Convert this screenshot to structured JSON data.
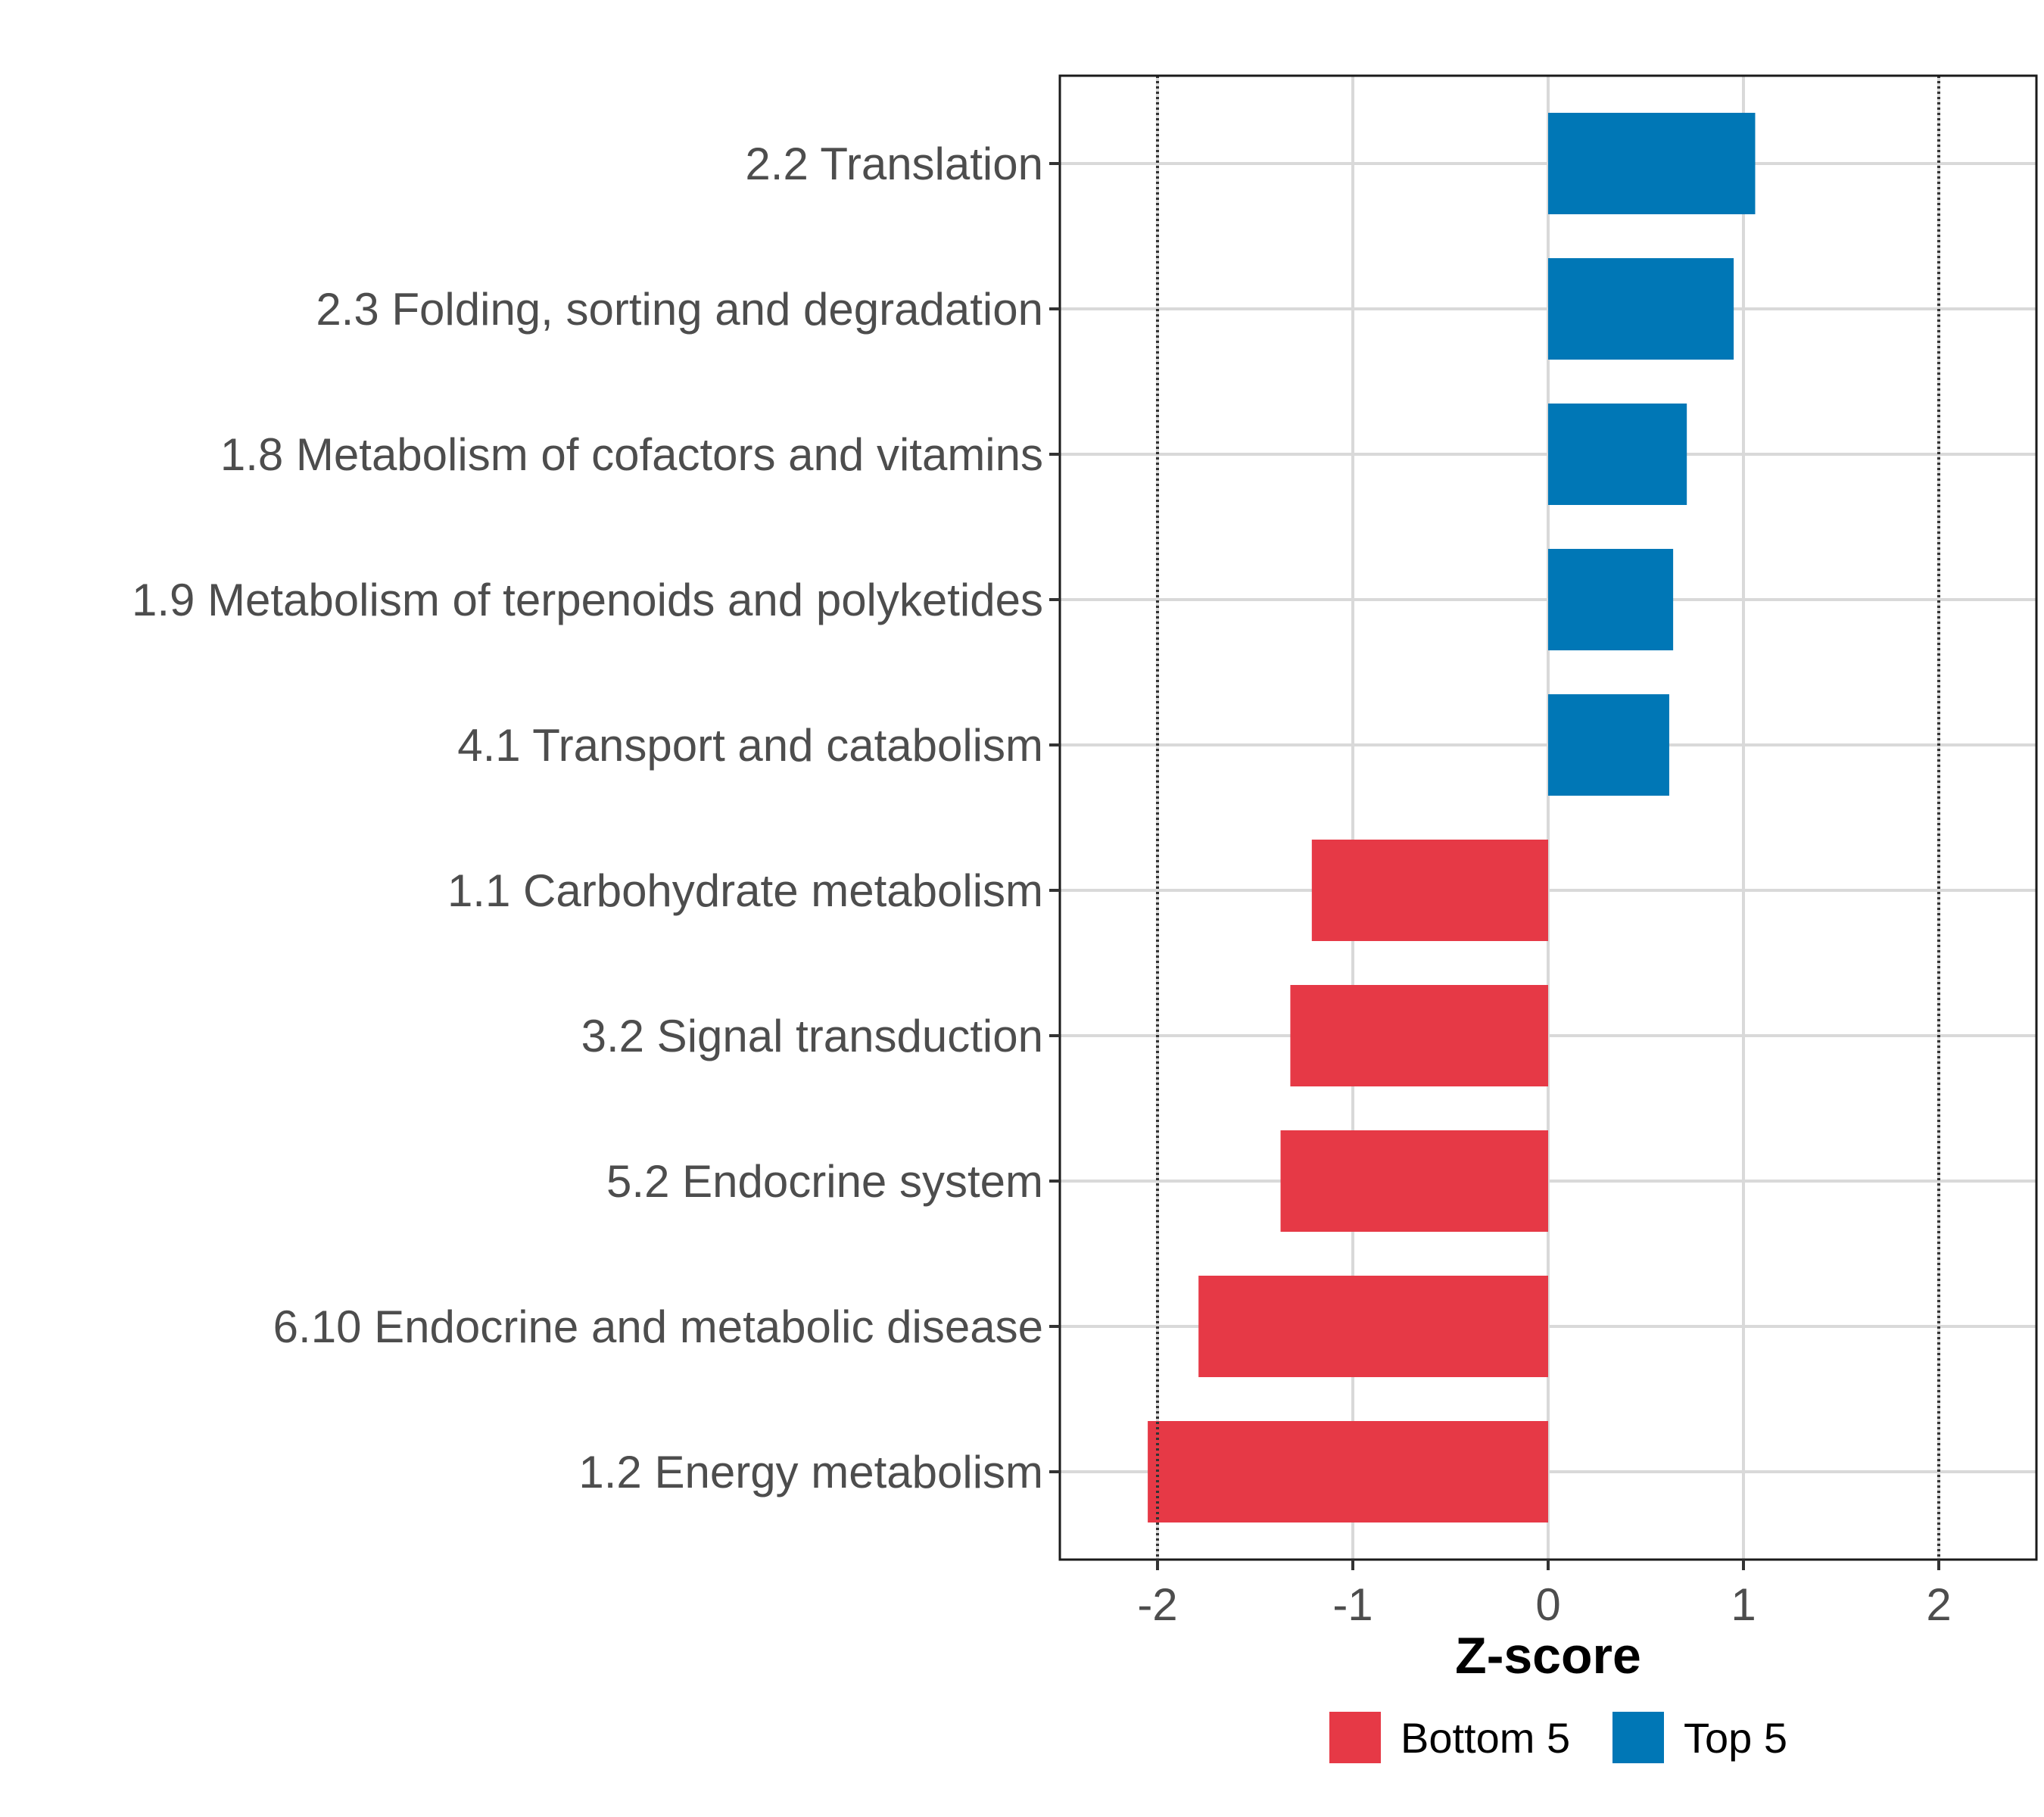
{
  "chart_data": {
    "type": "bar",
    "orientation": "horizontal",
    "xlabel": "Z-score",
    "xlim": [
      -2.5,
      2.5
    ],
    "xticks": [
      -2,
      -1,
      0,
      1,
      2
    ],
    "xtick_labels": [
      "-2",
      "-1",
      "0",
      "1",
      "2"
    ],
    "reference_lines": [
      -2,
      2
    ],
    "grid": true,
    "categories": [
      "2.2 Translation",
      "2.3 Folding, sorting and degradation",
      "1.8 Metabolism of cofactors and vitamins",
      "1.9 Metabolism of terpenoids and polyketides",
      "4.1 Transport and catabolism",
      "1.1 Carbohydrate metabolism",
      "3.2 Signal transduction",
      "5.2 Endocrine system",
      "6.10 Endocrine and metabolic disease",
      "1.2 Energy metabolism"
    ],
    "values": [
      1.06,
      0.95,
      0.71,
      0.64,
      0.62,
      -1.21,
      -1.32,
      -1.37,
      -1.79,
      -2.05
    ],
    "groups": [
      "Top 5",
      "Top 5",
      "Top 5",
      "Top 5",
      "Top 5",
      "Bottom 5",
      "Bottom 5",
      "Bottom 5",
      "Bottom 5",
      "Bottom 5"
    ],
    "legend": [
      {
        "name": "Bottom 5",
        "color": "#e63946"
      },
      {
        "name": "Top 5",
        "color": "#0077b6"
      }
    ],
    "legend_position": "bottom"
  }
}
